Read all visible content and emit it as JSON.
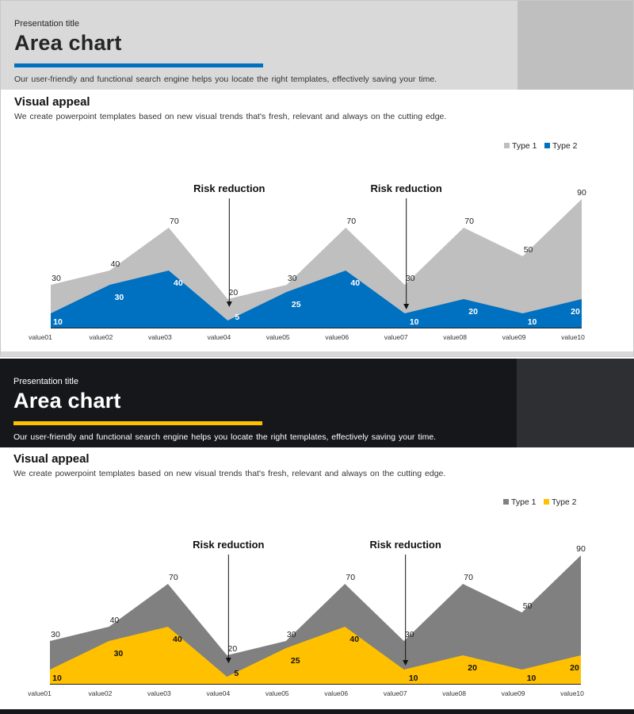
{
  "slides": [
    {
      "presentation_title": "Presentation title",
      "title": "Area chart",
      "header_desc": "Our user-friendly  and functional  search engine helps you locate the right templates, effectively  saving  your time.",
      "section_title": "Visual appeal",
      "section_desc": "We create powerpoint  templates based on new visual trends that's fresh,  relevant  and always on the cutting edge.",
      "colors": {
        "type1": "#bfbfbf",
        "type2": "#0070c0",
        "type2_label": "#ffffff"
      }
    },
    {
      "presentation_title": "Presentation title",
      "title": "Area chart",
      "header_desc": "Our user-friendly  and functional  search engine helps you locate the right templates, effectively  saving  your time.",
      "section_title": "Visual appeal",
      "section_desc": "We create powerpoint  templates based on new visual trends that's fresh,  relevant  and always on the cutting edge.",
      "colors": {
        "type1": "#808080",
        "type2": "#ffc000",
        "type2_label": "#111111"
      }
    }
  ],
  "chart_data": [
    {
      "type": "area",
      "categories": [
        "value01",
        "value02",
        "value03",
        "value04",
        "value05",
        "value06",
        "value07",
        "value08",
        "value09",
        "value10"
      ],
      "series": [
        {
          "name": "Type 1",
          "values": [
            30,
            40,
            70,
            20,
            30,
            70,
            30,
            70,
            50,
            90
          ]
        },
        {
          "name": "Type 2",
          "values": [
            10,
            30,
            40,
            5,
            25,
            40,
            10,
            20,
            10,
            20
          ]
        }
      ],
      "ylim": [
        0,
        90
      ],
      "legend": "top-right",
      "annotations": [
        {
          "text": "Risk reduction",
          "category": "value04"
        },
        {
          "text": "Risk reduction",
          "category": "value07"
        }
      ]
    },
    {
      "type": "area",
      "categories": [
        "value01",
        "value02",
        "value03",
        "value04",
        "value05",
        "value06",
        "value07",
        "value08",
        "value09",
        "value10"
      ],
      "series": [
        {
          "name": "Type 1",
          "values": [
            30,
            40,
            70,
            20,
            30,
            70,
            30,
            70,
            50,
            90
          ]
        },
        {
          "name": "Type 2",
          "values": [
            10,
            30,
            40,
            5,
            25,
            40,
            10,
            20,
            10,
            20
          ]
        }
      ],
      "ylim": [
        0,
        90
      ],
      "legend": "top-right",
      "annotations": [
        {
          "text": "Risk reduction",
          "category": "value04"
        },
        {
          "text": "Risk reduction",
          "category": "value07"
        }
      ]
    }
  ]
}
